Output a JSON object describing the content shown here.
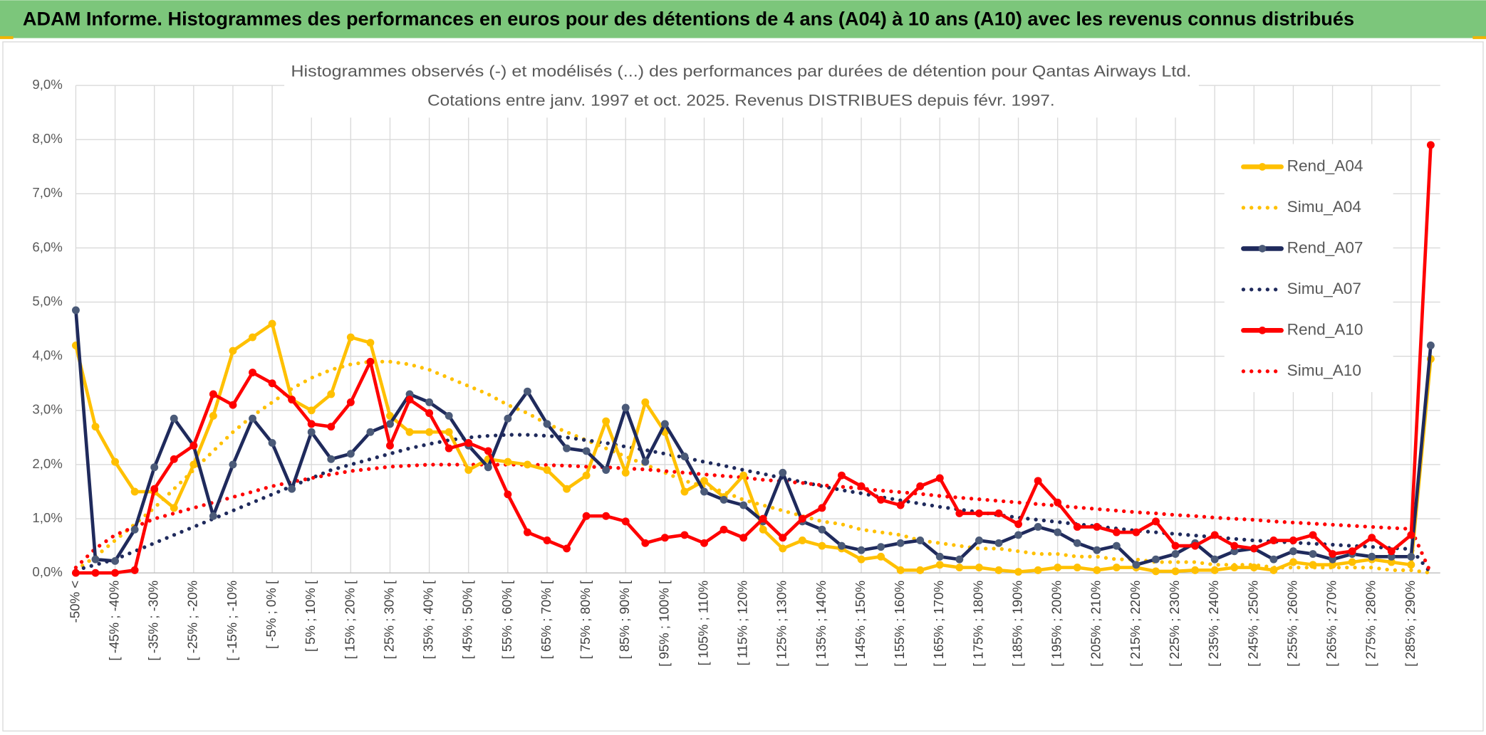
{
  "header": {
    "title": "ADAM Informe. Histogrammes des performances en euros pour des détentions de 4 ans (A04) à 10 ans (A10) avec les revenus connus distribués"
  },
  "chart_data": {
    "type": "line",
    "title": "Histogrammes observés (-) et modélisés (...) des performances par durées de détention pour Qantas Airways Ltd.",
    "subtitle": "Cotations entre janv. 1997 et oct. 2025. Revenus DISTRIBUES depuis févr. 1997.",
    "categories": [
      "-50% <",
      null,
      "[ -45% ; -40%",
      null,
      "[ -35% ; -30%",
      null,
      "[ -25% ; -20%",
      null,
      "[ -15% ; -10%",
      null,
      "[ -5% ; 0% [",
      null,
      "[ 5% ; 10% [",
      null,
      "[ 15% ; 20% [",
      null,
      "[ 25% ; 30% [",
      null,
      "[ 35% ; 40% [",
      null,
      "[ 45% ; 50% [",
      null,
      "[ 55% ; 60% [",
      null,
      "[ 65% ; 70% [",
      null,
      "[ 75% ; 80% [",
      null,
      "[ 85% ; 90% [",
      null,
      "[ 95% ; 100% [",
      null,
      "[ 105% ; 110%",
      null,
      "[ 115% ; 120%",
      null,
      "[ 125% ; 130%",
      null,
      "[ 135% ; 140%",
      null,
      "[ 145% ; 150%",
      null,
      "[ 155% ; 160%",
      null,
      "[ 165% ; 170%",
      null,
      "[ 175% ; 180%",
      null,
      "[ 185% ; 190%",
      null,
      "[ 195% ; 200%",
      null,
      "[ 205% ; 210%",
      null,
      "[ 215% ; 220%",
      null,
      "[ 225% ; 230%",
      null,
      "[ 235% ; 240%",
      null,
      "[ 245% ; 250%",
      null,
      "[ 255% ; 260%",
      null,
      "[ 265% ; 270%",
      null,
      "[ 275% ; 280%",
      null,
      "[ 285% ; 290%",
      null
    ],
    "ylim": [
      0,
      9
    ],
    "yticks": [
      {
        "value": 0,
        "label": "0,0%"
      },
      {
        "value": 1,
        "label": "1,0%"
      },
      {
        "value": 2,
        "label": "2,0%"
      },
      {
        "value": 3,
        "label": "3,0%"
      },
      {
        "value": 4,
        "label": "4,0%"
      },
      {
        "value": 5,
        "label": "5,0%"
      },
      {
        "value": 6,
        "label": "6,0%"
      },
      {
        "value": 7,
        "label": "7,0%"
      },
      {
        "value": 8,
        "label": "8,0%"
      },
      {
        "value": 9,
        "label": "9,0%"
      }
    ],
    "grid": true,
    "legend": "right",
    "series": [
      {
        "name": "Rend_A04",
        "color": "#ffc000",
        "style": "solid",
        "marker": true,
        "values": [
          4.2,
          2.7,
          2.05,
          1.5,
          1.5,
          1.2,
          2.0,
          2.9,
          4.1,
          4.35,
          4.6,
          3.2,
          3.0,
          3.3,
          4.35,
          4.25,
          2.9,
          2.6,
          2.6,
          2.6,
          1.9,
          2.1,
          2.05,
          2.0,
          1.9,
          1.55,
          1.8,
          2.8,
          1.85,
          3.15,
          2.6,
          1.5,
          1.7,
          1.4,
          1.8,
          0.8,
          0.45,
          0.6,
          0.5,
          0.45,
          0.25,
          0.3,
          0.05,
          0.05,
          0.15,
          0.1,
          0.1,
          0.05,
          0.02,
          0.05,
          0.1,
          0.1,
          0.05,
          0.1,
          0.1,
          0.03,
          0.03,
          0.05,
          0.05,
          0.1,
          0.1,
          0.05,
          0.2,
          0.15,
          0.15,
          0.2,
          0.25,
          0.2,
          0.15,
          3.95
        ]
      },
      {
        "name": "Simu_A04",
        "color": "#ffc000",
        "style": "dotted",
        "marker": false,
        "values": [
          0.05,
          0.3,
          0.6,
          0.9,
          1.2,
          1.55,
          1.9,
          2.25,
          2.6,
          2.9,
          3.15,
          3.4,
          3.6,
          3.75,
          3.85,
          3.9,
          3.9,
          3.85,
          3.75,
          3.6,
          3.45,
          3.3,
          3.1,
          2.95,
          2.75,
          2.6,
          2.45,
          2.3,
          2.15,
          2.0,
          1.85,
          1.7,
          1.6,
          1.5,
          1.35,
          1.25,
          1.15,
          1.05,
          0.95,
          0.9,
          0.8,
          0.75,
          0.7,
          0.6,
          0.55,
          0.5,
          0.45,
          0.45,
          0.4,
          0.35,
          0.35,
          0.3,
          0.3,
          0.25,
          0.25,
          0.2,
          0.2,
          0.2,
          0.15,
          0.15,
          0.15,
          0.1,
          0.1,
          0.1,
          0.1,
          0.1,
          0.1,
          0.05,
          0.05,
          0
        ]
      },
      {
        "name": "Rend_A07",
        "color": "#1f2a5c",
        "style": "solid",
        "marker": true,
        "values": [
          4.85,
          0.25,
          0.22,
          0.8,
          1.95,
          2.85,
          2.35,
          1.05,
          2.0,
          2.85,
          2.4,
          1.55,
          2.6,
          2.1,
          2.2,
          2.6,
          2.75,
          3.3,
          3.15,
          2.9,
          2.35,
          1.95,
          2.85,
          3.35,
          2.75,
          2.3,
          2.25,
          1.9,
          3.05,
          2.05,
          2.75,
          2.15,
          1.5,
          1.35,
          1.25,
          0.95,
          1.85,
          0.95,
          0.8,
          0.5,
          0.42,
          0.48,
          0.55,
          0.6,
          0.3,
          0.25,
          0.6,
          0.55,
          0.7,
          0.85,
          0.75,
          0.55,
          0.42,
          0.5,
          0.15,
          0.25,
          0.35,
          0.55,
          0.25,
          0.4,
          0.45,
          0.25,
          0.4,
          0.35,
          0.25,
          0.35,
          0.3,
          0.3,
          0.3,
          4.2
        ]
      },
      {
        "name": "Simu_A07",
        "color": "#1f2a5c",
        "style": "dotted",
        "marker": false,
        "values": [
          0.05,
          0.15,
          0.25,
          0.4,
          0.55,
          0.7,
          0.85,
          1.0,
          1.15,
          1.3,
          1.45,
          1.6,
          1.75,
          1.9,
          2.0,
          2.1,
          2.2,
          2.3,
          2.38,
          2.45,
          2.5,
          2.53,
          2.55,
          2.55,
          2.53,
          2.5,
          2.45,
          2.4,
          2.33,
          2.27,
          2.2,
          2.13,
          2.05,
          1.98,
          1.9,
          1.83,
          1.75,
          1.68,
          1.6,
          1.53,
          1.47,
          1.4,
          1.34,
          1.28,
          1.22,
          1.17,
          1.12,
          1.07,
          1.02,
          0.98,
          0.94,
          0.9,
          0.86,
          0.82,
          0.78,
          0.75,
          0.72,
          0.69,
          0.66,
          0.63,
          0.6,
          0.58,
          0.56,
          0.54,
          0.52,
          0.5,
          0.48,
          0.46,
          0.44,
          0
        ]
      },
      {
        "name": "Rend_A10",
        "color": "#ff0000",
        "style": "solid",
        "marker": true,
        "values": [
          0,
          0,
          0,
          0.05,
          1.55,
          2.1,
          2.35,
          3.3,
          3.1,
          3.7,
          3.5,
          3.2,
          2.75,
          2.7,
          3.15,
          3.9,
          2.35,
          3.2,
          2.95,
          2.3,
          2.4,
          2.25,
          1.45,
          0.75,
          0.6,
          0.45,
          1.05,
          1.05,
          0.95,
          0.55,
          0.65,
          0.7,
          0.55,
          0.8,
          0.65,
          1.0,
          0.65,
          1.0,
          1.2,
          1.8,
          1.6,
          1.35,
          1.25,
          1.6,
          1.75,
          1.1,
          1.1,
          1.1,
          0.9,
          1.7,
          1.3,
          0.85,
          0.85,
          0.75,
          0.75,
          0.95,
          0.5,
          0.5,
          0.7,
          0.5,
          0.45,
          0.6,
          0.6,
          0.7,
          0.35,
          0.4,
          0.65,
          0.4,
          0.7,
          7.9
        ]
      },
      {
        "name": "Simu_A10",
        "color": "#ff0000",
        "style": "dotted",
        "marker": false,
        "values": [
          0.1,
          0.45,
          0.7,
          0.85,
          1.0,
          1.1,
          1.2,
          1.3,
          1.4,
          1.5,
          1.6,
          1.68,
          1.75,
          1.82,
          1.88,
          1.92,
          1.96,
          1.98,
          2.0,
          2.0,
          2.0,
          2.0,
          2.0,
          2.0,
          1.99,
          1.98,
          1.96,
          1.95,
          1.93,
          1.91,
          1.88,
          1.85,
          1.82,
          1.79,
          1.76,
          1.72,
          1.69,
          1.66,
          1.62,
          1.59,
          1.56,
          1.52,
          1.49,
          1.46,
          1.42,
          1.39,
          1.36,
          1.33,
          1.3,
          1.27,
          1.24,
          1.21,
          1.18,
          1.15,
          1.12,
          1.1,
          1.07,
          1.05,
          1.02,
          1.0,
          0.98,
          0.95,
          0.93,
          0.91,
          0.89,
          0.87,
          0.85,
          0.83,
          0.81,
          0
        ]
      }
    ]
  }
}
